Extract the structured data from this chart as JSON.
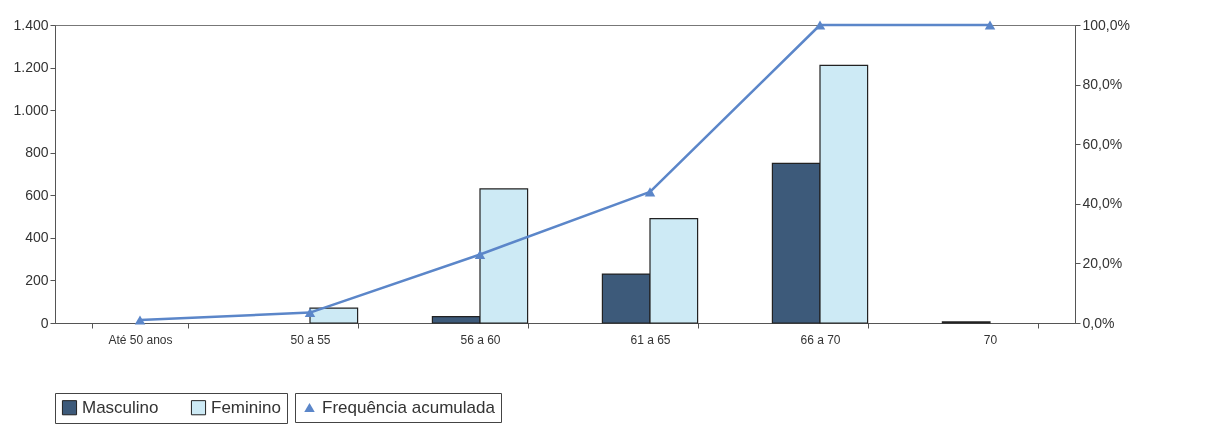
{
  "chart_data": {
    "type": "bar",
    "categories": [
      "Até 50 anos",
      "50 a 55",
      "56 a 60",
      "61 a 65",
      "66 a 70",
      "70"
    ],
    "series": [
      {
        "name": "Masculino",
        "color": "#3d5a7a",
        "values": [
          0,
          0,
          30,
          230,
          750,
          5
        ]
      },
      {
        "name": "Feminino",
        "color": "#cdeaf5",
        "values": [
          0,
          70,
          630,
          490,
          1210,
          0
        ]
      },
      {
        "name": "Frequência acumulada",
        "type": "line",
        "axis": "y2",
        "color": "#5b86c9",
        "values": [
          1,
          3.5,
          23,
          44,
          100,
          100
        ]
      }
    ],
    "ylim": [
      0,
      1400
    ],
    "yticks": [
      0,
      200,
      400,
      600,
      800,
      {
        "value": 1000,
        "label": "1.000"
      },
      {
        "value": 1200,
        "label": "1.200"
      },
      {
        "value": 1400,
        "label": "1.400"
      }
    ],
    "y2lim": [
      0,
      100
    ],
    "y2ticks": [
      {
        "value": 0,
        "label": "0,0%"
      },
      {
        "value": 20,
        "label": "20,0%"
      },
      {
        "value": 40,
        "label": "40,0%"
      },
      {
        "value": 60,
        "label": "60,0%"
      },
      {
        "value": 80,
        "label": "80,0%"
      },
      {
        "value": 100,
        "label": "100,0%"
      }
    ],
    "marker": "triangle",
    "legend": "bottom"
  }
}
